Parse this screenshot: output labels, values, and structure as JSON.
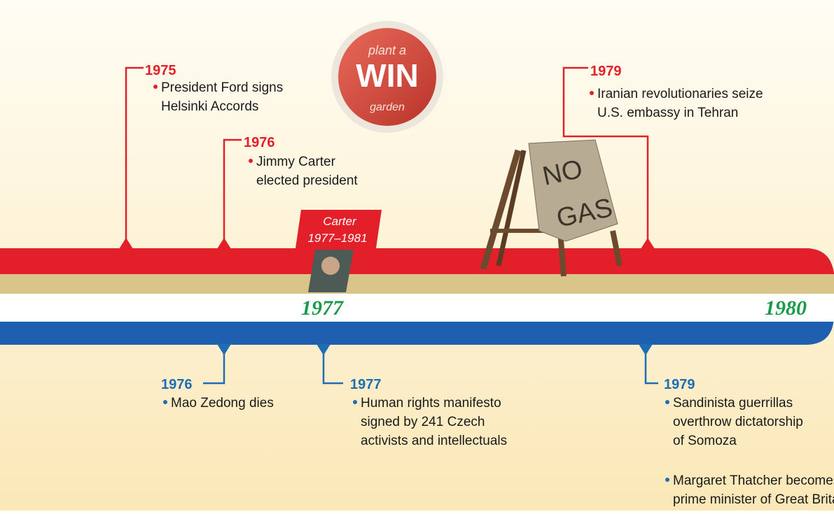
{
  "band_labels": [
    "1977",
    "1980"
  ],
  "carter": {
    "name": "Carter",
    "term": "1977–1981"
  },
  "poster": {
    "lines": [
      "plant a",
      "WIN",
      "garden"
    ]
  },
  "sign": {
    "lines": [
      "NO",
      "GAS"
    ]
  },
  "top_events": [
    {
      "year": "1975",
      "items": [
        [
          "President Ford signs",
          "Helsinki Accords"
        ]
      ]
    },
    {
      "year": "1976",
      "items": [
        [
          "Jimmy Carter",
          "elected president"
        ]
      ]
    },
    {
      "year": "1979",
      "items": [
        [
          "Iranian revolutionaries seize",
          "U.S. embassy in Tehran"
        ]
      ]
    }
  ],
  "bottom_events": [
    {
      "year": "1976",
      "items": [
        [
          "Mao Zedong dies"
        ]
      ]
    },
    {
      "year": "1977",
      "items": [
        [
          "Human rights manifesto",
          "signed by 241 Czech",
          "activists and intellectuals"
        ]
      ]
    },
    {
      "year": "1979",
      "items": [
        [
          "Sandinista guerrillas",
          "overthrow dictatorship",
          "of Somoza"
        ],
        [
          "Margaret Thatcher becomes",
          "prime minister of Great Britain"
        ]
      ]
    }
  ]
}
